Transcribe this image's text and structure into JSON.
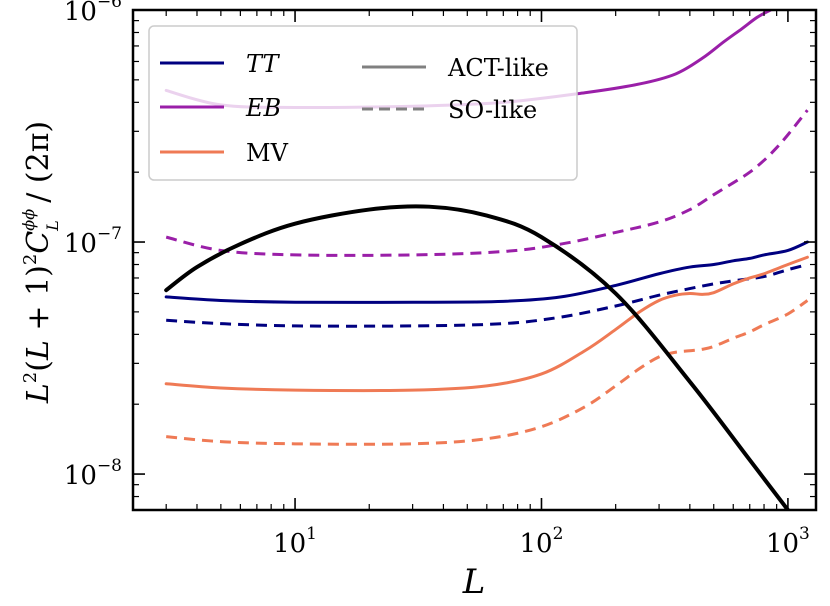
{
  "chart_data": {
    "type": "line",
    "xlabel": "L",
    "ylabel": "L²(L + 1)²Cᴸᵠᵠ / (2π)",
    "xscale": "log",
    "yscale": "log",
    "xlim": [
      2.2,
      1300
    ],
    "ylim": [
      7e-09,
      1e-06
    ],
    "x_ticks": [
      {
        "value": 10,
        "base": "10",
        "exp": "1"
      },
      {
        "value": 100,
        "base": "10",
        "exp": "2"
      },
      {
        "value": 1000,
        "base": "10",
        "exp": "3"
      }
    ],
    "y_ticks": [
      {
        "value": 1e-08,
        "base": "10",
        "exp": "−8"
      },
      {
        "value": 1e-07,
        "base": "10",
        "exp": "−7"
      },
      {
        "value": 1e-06,
        "base": "10",
        "exp": "−6"
      }
    ],
    "grid": false,
    "legend_position": "top-left",
    "legend": {
      "estimators": [
        {
          "label": "TT",
          "color": "#000080",
          "math": true
        },
        {
          "label": "EB",
          "color": "#9a1fa8",
          "math": true
        },
        {
          "label": "MV",
          "color": "#ef7a55",
          "math": false
        }
      ],
      "experiments": [
        {
          "label": "ACT-like",
          "dash": "solid"
        },
        {
          "label": "SO-like",
          "dash": "dashed"
        }
      ]
    },
    "series": [
      {
        "id": "signal",
        "color": "#000000",
        "dash": "solid",
        "width": 4,
        "x": [
          3,
          4,
          6,
          10,
          20,
          35,
          60,
          100,
          200,
          400,
          700,
          1000
        ],
        "y": [
          6.2e-08,
          7.8e-08,
          9.8e-08,
          1.2e-07,
          1.38e-07,
          1.42e-07,
          1.3e-07,
          1.05e-07,
          6e-08,
          2.5e-08,
          1.15e-08,
          7e-09
        ]
      },
      {
        "id": "TT-ACT",
        "estimator": "TT",
        "experiment": "ACT-like",
        "color": "#000080",
        "dash": "solid",
        "width": 3,
        "x": [
          3,
          5,
          10,
          30,
          70,
          120,
          200,
          300,
          400,
          500,
          600,
          700,
          800,
          1000,
          1200
        ],
        "y": [
          5.8e-08,
          5.6e-08,
          5.5e-08,
          5.5e-08,
          5.55e-08,
          5.8e-08,
          6.5e-08,
          7.3e-08,
          7.8e-08,
          8e-08,
          8.3e-08,
          8.5e-08,
          8.8e-08,
          9.2e-08,
          1e-07
        ]
      },
      {
        "id": "TT-SO",
        "estimator": "TT",
        "experiment": "SO-like",
        "color": "#000080",
        "dash": "dashed",
        "width": 3,
        "x": [
          3,
          5,
          10,
          30,
          70,
          120,
          200,
          300,
          400,
          500,
          600,
          800,
          1000,
          1200
        ],
        "y": [
          4.6e-08,
          4.45e-08,
          4.35e-08,
          4.35e-08,
          4.45e-08,
          4.75e-08,
          5.3e-08,
          5.9e-08,
          6.3e-08,
          6.6e-08,
          6.8e-08,
          7.1e-08,
          7.6e-08,
          8e-08
        ]
      },
      {
        "id": "EB-ACT",
        "estimator": "EB",
        "experiment": "ACT-like",
        "color": "#9a1fa8",
        "dash": "solid",
        "width": 3,
        "x": [
          3,
          5,
          10,
          30,
          70,
          150,
          250,
          350,
          450,
          550,
          650,
          750,
          850
        ],
        "y": [
          4.5e-07,
          3.9e-07,
          3.8e-07,
          3.85e-07,
          4e-07,
          4.4e-07,
          4.8e-07,
          5.3e-07,
          6.2e-07,
          7.3e-07,
          8.3e-07,
          9.3e-07,
          1e-06
        ]
      },
      {
        "id": "EB-SO",
        "estimator": "EB",
        "experiment": "SO-like",
        "color": "#9a1fa8",
        "dash": "dashed",
        "width": 3,
        "x": [
          3,
          5,
          10,
          30,
          70,
          120,
          200,
          300,
          400,
          500,
          600,
          700,
          800,
          900,
          1000,
          1200
        ],
        "y": [
          1.05e-07,
          9.2e-08,
          8.8e-08,
          8.8e-08,
          9.1e-08,
          9.8e-08,
          1.1e-07,
          1.22e-07,
          1.38e-07,
          1.6e-07,
          1.8e-07,
          2e-07,
          2.25e-07,
          2.55e-07,
          2.9e-07,
          3.7e-07
        ]
      },
      {
        "id": "MV-ACT",
        "estimator": "MV",
        "experiment": "ACT-like",
        "color": "#ef7a55",
        "dash": "solid",
        "width": 3,
        "x": [
          3,
          5,
          10,
          30,
          60,
          100,
          150,
          200,
          250,
          300,
          350,
          400,
          450,
          500,
          600,
          700,
          800,
          1000,
          1200
        ],
        "y": [
          2.45e-08,
          2.35e-08,
          2.3e-08,
          2.3e-08,
          2.4e-08,
          2.7e-08,
          3.4e-08,
          4.2e-08,
          5e-08,
          5.6e-08,
          5.9e-08,
          6e-08,
          5.95e-08,
          6.05e-08,
          6.6e-08,
          7e-08,
          7.3e-08,
          8e-08,
          8.6e-08
        ]
      },
      {
        "id": "MV-SO",
        "estimator": "MV",
        "experiment": "SO-like",
        "color": "#ef7a55",
        "dash": "dashed",
        "width": 3,
        "x": [
          3,
          5,
          10,
          30,
          60,
          100,
          150,
          200,
          250,
          300,
          350,
          400,
          450,
          500,
          600,
          700,
          800,
          1000,
          1200
        ],
        "y": [
          1.45e-08,
          1.38e-08,
          1.35e-08,
          1.35e-08,
          1.42e-08,
          1.6e-08,
          1.95e-08,
          2.4e-08,
          2.85e-08,
          3.2e-08,
          3.35e-08,
          3.4e-08,
          3.45e-08,
          3.55e-08,
          3.85e-08,
          4.1e-08,
          4.4e-08,
          4.9e-08,
          5.6e-08
        ]
      }
    ]
  }
}
